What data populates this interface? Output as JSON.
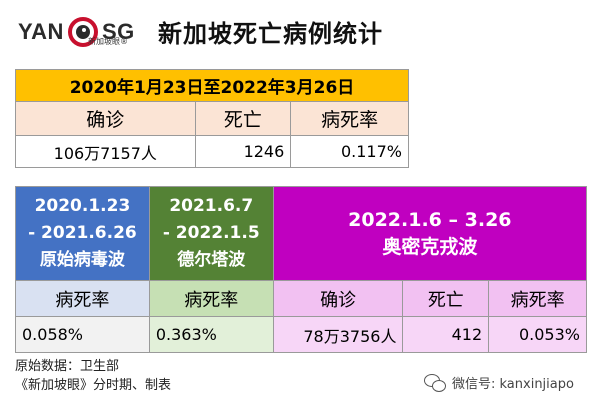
{
  "logo": {
    "left_text": "YAN",
    "right_text": "SG",
    "subtitle": "新加坡眼®"
  },
  "title": "新加坡死亡病例统计",
  "summary": {
    "date_range": "2020年1月23日至2022年3月26日",
    "headers": [
      "确诊",
      "死亡",
      "病死率"
    ],
    "values": [
      "106万7157人",
      "1246",
      "0.117%"
    ]
  },
  "waves": {
    "original": {
      "range_line1": "2020.1.23",
      "range_line2": "- 2021.6.26",
      "name": "原始病毒波",
      "header": "病死率",
      "value": "0.058%"
    },
    "delta": {
      "range_line1": "2021.6.7",
      "range_line2": "- 2022.1.5",
      "name": "德尔塔波",
      "header": "病死率",
      "value": "0.363%"
    },
    "omicron": {
      "range": "2022.1.6 – 3.26",
      "name": "奥密克戎波",
      "headers": [
        "确诊",
        "死亡",
        "病死率"
      ],
      "values": [
        "78万3756人",
        "412",
        "0.053%"
      ]
    }
  },
  "footer": {
    "line1": "原始数据：卫生部",
    "line2": "《新加坡眼》分时期、制表"
  },
  "watermark": {
    "icon": "wechat-icon",
    "text": "微信号: kanxinjiapo"
  },
  "colors": {
    "gold": "#ffc000",
    "blue": "#4472c4",
    "green": "#548235",
    "purple": "#c000c0"
  }
}
